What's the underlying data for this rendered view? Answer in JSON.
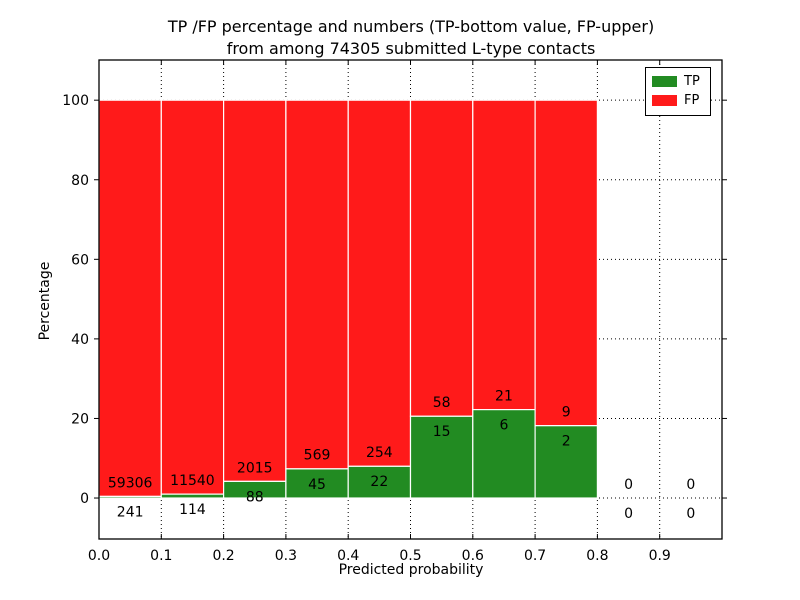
{
  "title": {
    "line1": "TP /FP percentage and numbers (TP-bottom value, FP-upper)",
    "line2": "from among 74305 submitted L-type contacts"
  },
  "chart_data": {
    "type": "bar",
    "stacked": true,
    "normalized_to_percent": true,
    "title": "TP /FP percentage and numbers (TP-bottom value, FP-upper)\nfrom among 74305 submitted L-type contacts",
    "title_lines": [
      "TP /FP percentage and numbers (TP-bottom value, FP-upper)",
      "from among 74305 submitted L-type contacts"
    ],
    "total_submitted": 74305,
    "xlabel": "Predicted probability",
    "ylabel": "Percentage",
    "bin_width": 0.1,
    "bin_starts": [
      0.0,
      0.1,
      0.2,
      0.3,
      0.4,
      0.5,
      0.6,
      0.7,
      0.8,
      0.9
    ],
    "series": [
      {
        "name": "TP",
        "color": "#228b22",
        "counts": [
          241,
          114,
          88,
          45,
          22,
          15,
          6,
          2,
          0,
          0
        ]
      },
      {
        "name": "FP",
        "color": "#ff1a1a",
        "counts": [
          59306,
          11540,
          2015,
          569,
          254,
          58,
          21,
          9,
          0,
          0
        ]
      }
    ],
    "tp_percent_of_bin": [
      0.4,
      1.0,
      4.2,
      7.3,
      8.0,
      20.5,
      22.2,
      18.2,
      0,
      0
    ],
    "x_tick_labels": [
      "0.0",
      "0.1",
      "0.2",
      "0.3",
      "0.4",
      "0.5",
      "0.6",
      "0.7",
      "0.8",
      "0.9"
    ],
    "y_ticks": [
      0,
      20,
      40,
      60,
      80,
      100
    ],
    "xlim": [
      0.0,
      1.0
    ],
    "ylim": [
      -10.3,
      110.1
    ],
    "grid": true,
    "grid_style": "dotted",
    "legend_position": "upper right",
    "legend": [
      "TP",
      "FP"
    ],
    "annotation_note": "TP count drawn below stack boundary, FP count above it",
    "frame_color": "#000000",
    "bar_edge_color": "#ffffff",
    "text_color": "#000000"
  }
}
